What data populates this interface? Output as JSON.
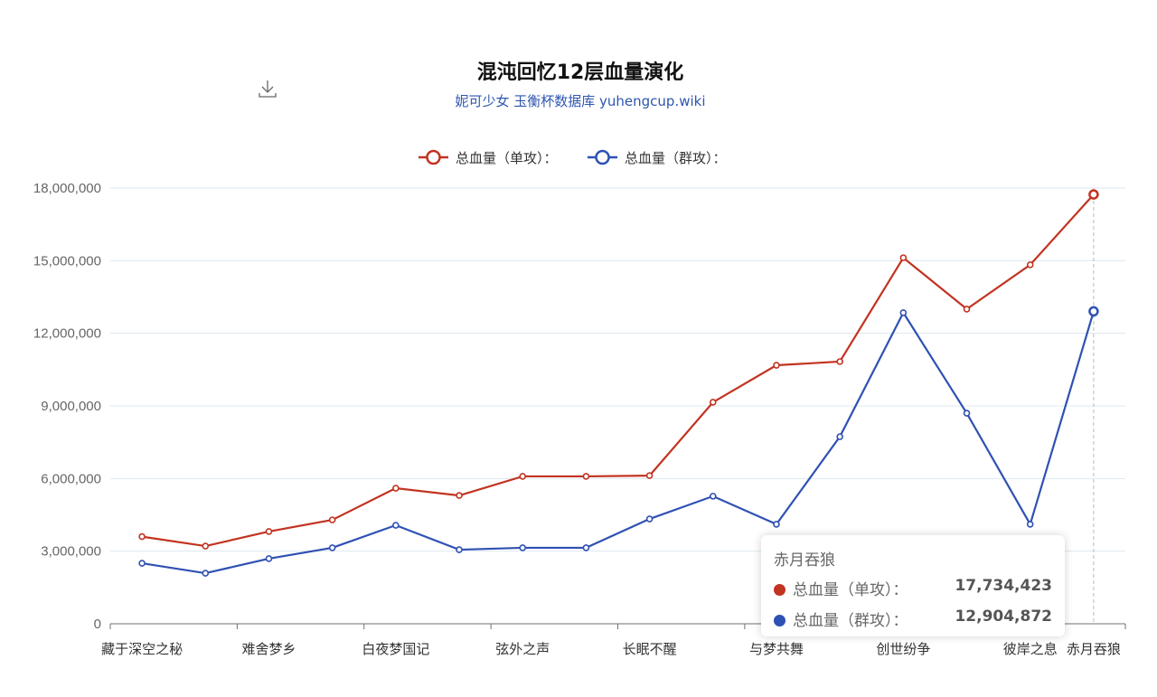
{
  "chart_data": {
    "type": "line",
    "title": "混沌回忆12层血量演化",
    "subtitle": "妮可少女 玉衡杯数据库 yuhengcup.wiki",
    "categories": [
      "藏于深空之秘",
      "",
      "难舍梦乡",
      "",
      "白夜梦国记",
      "",
      "弦外之声",
      "",
      "长眠不醒",
      "",
      "与梦共舞",
      "",
      "创世纷争",
      "",
      "彼岸之息",
      "赤月吞狼"
    ],
    "ylim": [
      0,
      18000000
    ],
    "yticks": [
      "0",
      "3,000,000",
      "6,000,000",
      "9,000,000",
      "12,000,000",
      "15,000,000",
      "18,000,000"
    ],
    "ytick_values": [
      0,
      3000000,
      6000000,
      9000000,
      12000000,
      15000000,
      18000000
    ],
    "grid": true,
    "legend_position": "top-center",
    "series": [
      {
        "name": "总血量（单攻）：",
        "color": "#c23321",
        "values": [
          3600000,
          3210000,
          3810000,
          4290000,
          5600000,
          5300000,
          6090000,
          6090000,
          6120000,
          9150000,
          10680000,
          10830000,
          15120000,
          13000000,
          14830000,
          17734423
        ]
      },
      {
        "name": "总血量（群攻）：",
        "color": "#2f51b3",
        "values": [
          2500000,
          2090000,
          2690000,
          3140000,
          4070000,
          3060000,
          3140000,
          3140000,
          4330000,
          5270000,
          4110000,
          7730000,
          12850000,
          8700000,
          4110000,
          12904872
        ]
      }
    ]
  },
  "toolbar": {
    "download_icon": "download-icon"
  },
  "tooltip": {
    "title": "赤月吞狼",
    "rows": [
      {
        "label": "总血量（单攻）：",
        "value": "17,734,423"
      },
      {
        "label": "总血量（群攻）：",
        "value": "12,904,872"
      }
    ]
  }
}
